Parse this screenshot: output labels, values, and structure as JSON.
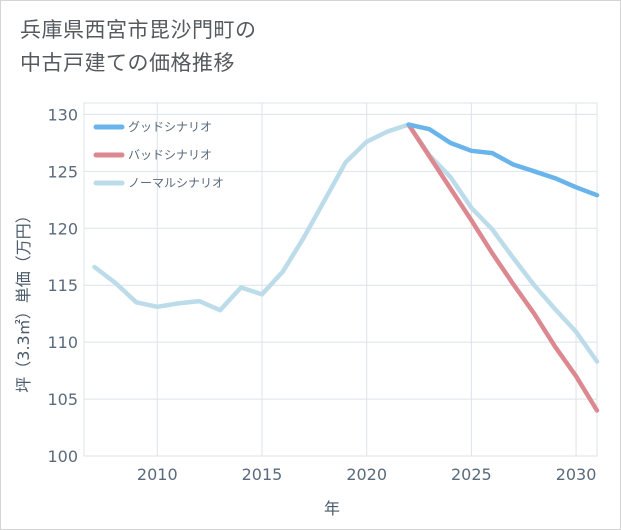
{
  "title": {
    "line1": "兵庫県西宮市毘沙門町の",
    "line2": "中古戸建ての価格推移"
  },
  "chart_data": {
    "type": "line",
    "xlabel": "年",
    "ylabel": "坪（3.3㎡）単価（万円）",
    "xlim": [
      2006.5,
      2031
    ],
    "ylim": [
      100,
      131
    ],
    "xticks": [
      2010,
      2015,
      2020,
      2025,
      2030
    ],
    "yticks": [
      100,
      105,
      110,
      115,
      120,
      125,
      130
    ],
    "grid": true,
    "legend_position": "top-left",
    "series": [
      {
        "name": "グッドシナリオ",
        "color": "#6ab4ec",
        "x": [
          2022,
          2023,
          2024,
          2025,
          2026,
          2027,
          2028,
          2029,
          2030,
          2031
        ],
        "values": [
          129.1,
          128.7,
          127.5,
          126.8,
          126.6,
          125.6,
          125.0,
          124.4,
          123.6,
          122.9
        ]
      },
      {
        "name": "バッドシナリオ",
        "color": "#dc8890",
        "x": [
          2022,
          2023,
          2024,
          2025,
          2026,
          2027,
          2028,
          2029,
          2030,
          2031
        ],
        "values": [
          129.1,
          126.3,
          123.5,
          120.7,
          117.8,
          115.1,
          112.5,
          109.6,
          107.0,
          104.0
        ]
      },
      {
        "name": "ノーマルシナリオ",
        "color": "#bcdcea",
        "x": [
          2007,
          2008,
          2009,
          2010,
          2011,
          2012,
          2013,
          2014,
          2015,
          2016,
          2017,
          2018,
          2019,
          2020,
          2021,
          2022,
          2023,
          2024,
          2025,
          2026,
          2027,
          2028,
          2029,
          2030,
          2031
        ],
        "values": [
          116.6,
          115.2,
          113.5,
          113.1,
          113.4,
          113.6,
          112.8,
          114.8,
          114.2,
          116.2,
          119.2,
          122.5,
          125.8,
          127.6,
          128.5,
          129.1,
          126.4,
          124.5,
          121.8,
          119.9,
          117.4,
          115.0,
          112.9,
          110.9,
          108.3
        ]
      }
    ]
  }
}
